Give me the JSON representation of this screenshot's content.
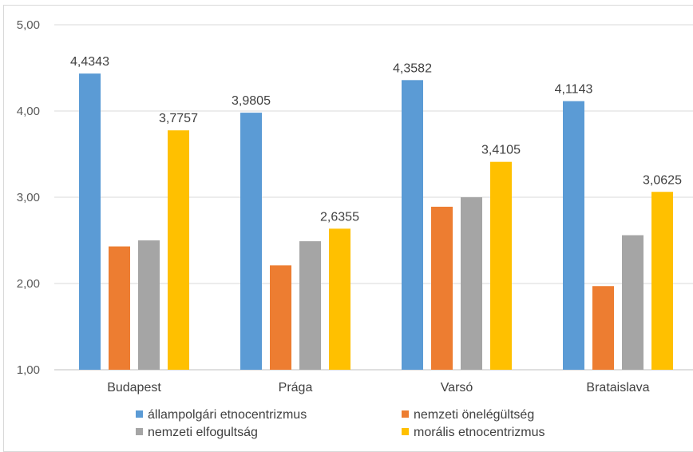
{
  "chart_data": {
    "type": "bar",
    "categories": [
      "Budapest",
      "Prága",
      "Varsó",
      "Brataislava"
    ],
    "ylim": [
      1,
      5
    ],
    "yticks": [
      "1,00",
      "2,00",
      "3,00",
      "4,00",
      "5,00"
    ],
    "grid": true,
    "legend_position": "bottom",
    "series": [
      {
        "name": "állampolgári etnocentrizmus",
        "color": "#5b9bd5",
        "values": [
          4.4343,
          3.9805,
          4.3582,
          4.1143
        ],
        "labels": [
          "4,4343",
          "3,9805",
          "4,3582",
          "4,1143"
        ]
      },
      {
        "name": "nemzeti önelégültség",
        "color": "#ed7d31",
        "values": [
          2.43,
          2.21,
          2.89,
          1.97
        ],
        "labels": [
          "",
          "",
          "",
          ""
        ]
      },
      {
        "name": "nemzeti elfogultság",
        "color": "#a5a5a5",
        "values": [
          2.5,
          2.49,
          3.0,
          2.56
        ],
        "labels": [
          "",
          "",
          "",
          ""
        ]
      },
      {
        "name": "morális etnocentrizmus",
        "color": "#ffc000",
        "values": [
          3.7757,
          2.6355,
          3.4105,
          3.0625
        ],
        "labels": [
          "3,7757",
          "2,6355",
          "3,4105",
          "3,0625"
        ]
      }
    ]
  }
}
